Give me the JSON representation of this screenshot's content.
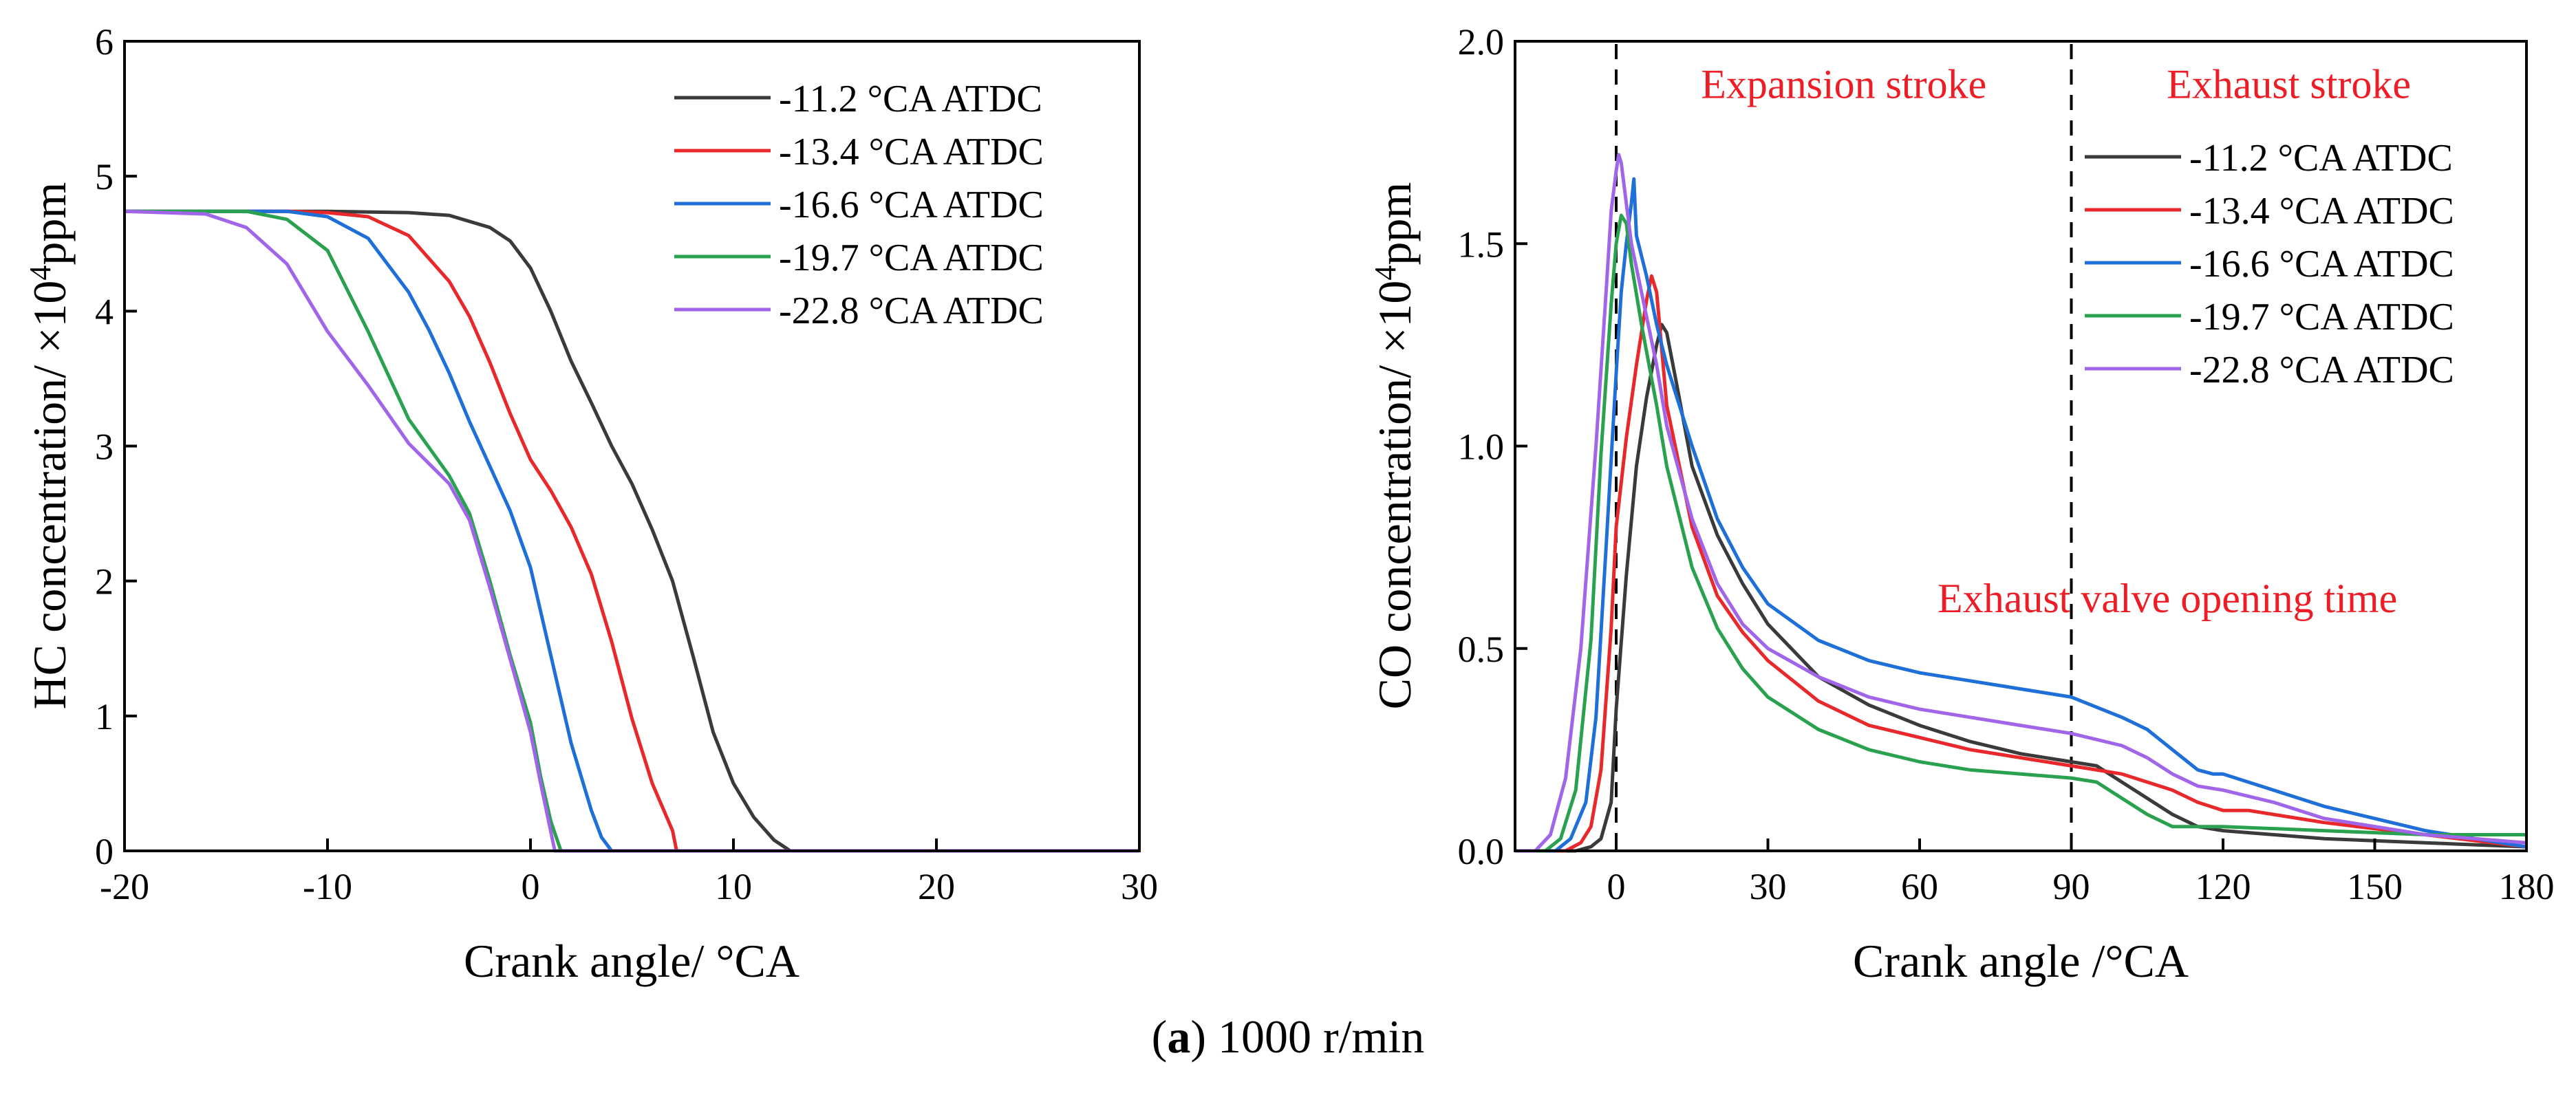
{
  "caption": {
    "bold": "a",
    "open": "(",
    "close": ")",
    "rest": " 1000 r/min"
  },
  "colors": {
    "-11.2": "#3a3a3a",
    "-13.4": "#e8282b",
    "-16.6": "#1f6fd8",
    "-19.7": "#2aa14f",
    "-22.8": "#a065e8",
    "annotation": "#ee1c24"
  },
  "chart_data": [
    {
      "type": "line",
      "id": "hc",
      "xlabel": "Crank angle/ °CA",
      "ylabel_prefix": "HC concentration/ ×10",
      "ylabel_sup": "4",
      "ylabel_suffix": "ppm",
      "xlim": [
        -20,
        30
      ],
      "ylim": [
        0,
        6
      ],
      "xticks": [
        -20,
        -10,
        0,
        10,
        20,
        30
      ],
      "yticks": [
        0,
        1,
        2,
        3,
        4,
        5,
        6
      ],
      "legend_position": "top-right",
      "series": [
        {
          "key": "-11.2",
          "name": "-11.2 °CA ATDC",
          "x": [
            -20,
            -10,
            -6,
            -4,
            -2,
            -1,
            0,
            1,
            2,
            3,
            4,
            5,
            6,
            7,
            8,
            9,
            10,
            11,
            12,
            12.8,
            13,
            30
          ],
          "y": [
            4.74,
            4.74,
            4.73,
            4.71,
            4.62,
            4.52,
            4.32,
            4.0,
            3.63,
            3.32,
            3.0,
            2.72,
            2.38,
            2.0,
            1.45,
            0.88,
            0.5,
            0.25,
            0.08,
            0.0,
            0.0,
            0.0
          ]
        },
        {
          "key": "-13.4",
          "name": "-13.4 °CA ATDC",
          "x": [
            -20,
            -12,
            -10,
            -8,
            -6,
            -4,
            -3,
            -2,
            -1,
            0,
            1,
            2,
            3,
            4,
            5,
            6,
            7,
            7.2,
            30
          ],
          "y": [
            4.74,
            4.74,
            4.73,
            4.7,
            4.56,
            4.22,
            3.96,
            3.62,
            3.24,
            2.9,
            2.67,
            2.4,
            2.05,
            1.55,
            0.98,
            0.5,
            0.15,
            0.0,
            0.0
          ]
        },
        {
          "key": "-16.6",
          "name": "-16.6 °CA ATDC",
          "x": [
            -20,
            -12,
            -10,
            -8,
            -6,
            -5,
            -4,
            -3,
            -2,
            -1,
            0,
            1,
            2,
            3,
            3.5,
            4,
            30
          ],
          "y": [
            4.74,
            4.74,
            4.7,
            4.54,
            4.14,
            3.86,
            3.54,
            3.18,
            2.85,
            2.52,
            2.1,
            1.45,
            0.8,
            0.3,
            0.1,
            0.0,
            0.0
          ]
        },
        {
          "key": "-19.7",
          "name": "-19.7 °CA ATDC",
          "x": [
            -20,
            -14,
            -12,
            -10,
            -8,
            -6,
            -4,
            -3,
            -2,
            -1,
            0,
            0.5,
            1,
            1.5,
            30
          ],
          "y": [
            4.74,
            4.74,
            4.68,
            4.45,
            3.85,
            3.2,
            2.78,
            2.5,
            2.0,
            1.45,
            0.95,
            0.55,
            0.22,
            0.0,
            0.0
          ]
        },
        {
          "key": "-22.8",
          "name": "-22.8 °CA ATDC",
          "x": [
            -20,
            -16,
            -14,
            -12,
            -10,
            -8,
            -6,
            -4,
            -3,
            -2,
            -1,
            0,
            0.5,
            1.2,
            30
          ],
          "y": [
            4.74,
            4.72,
            4.62,
            4.35,
            3.85,
            3.45,
            3.02,
            2.72,
            2.45,
            1.95,
            1.42,
            0.88,
            0.5,
            0.0,
            0.0
          ]
        }
      ]
    },
    {
      "type": "line",
      "id": "co",
      "xlabel": "Crank angle /°CA",
      "ylabel_prefix": "CO concentration/ ×10",
      "ylabel_sup": "4",
      "ylabel_suffix": "ppm",
      "xlim": [
        -20,
        180
      ],
      "ylim": [
        0,
        2.0
      ],
      "xticks": [
        0,
        30,
        60,
        90,
        120,
        150,
        180
      ],
      "yticks": [
        0.0,
        0.5,
        1.0,
        1.5,
        2.0
      ],
      "legend_position": "top-right",
      "vlines": [
        0,
        90
      ],
      "annotations": [
        {
          "text": "Expansion stroke",
          "x": 45,
          "y": 1.86
        },
        {
          "text": "Exhaust stroke",
          "x": 133,
          "y": 1.86
        },
        {
          "text": "Exhaust valve opening time",
          "x": 109,
          "y": 0.59
        }
      ],
      "series": [
        {
          "key": "-11.2",
          "name": "-11.2 °CA ATDC",
          "x": [
            -20,
            -8,
            -5,
            -3,
            -1,
            0,
            2,
            4,
            6,
            8,
            9,
            10,
            12,
            15,
            20,
            25,
            30,
            40,
            50,
            60,
            70,
            80,
            90,
            95,
            100,
            105,
            110,
            115,
            120,
            140,
            160,
            180
          ],
          "y": [
            0.0,
            0.0,
            0.01,
            0.03,
            0.12,
            0.35,
            0.68,
            0.95,
            1.12,
            1.25,
            1.3,
            1.28,
            1.15,
            0.95,
            0.78,
            0.66,
            0.56,
            0.43,
            0.36,
            0.31,
            0.27,
            0.24,
            0.22,
            0.21,
            0.17,
            0.13,
            0.09,
            0.06,
            0.05,
            0.03,
            0.02,
            0.01
          ]
        },
        {
          "key": "-13.4",
          "name": "-13.4 °CA ATDC",
          "x": [
            -20,
            -10,
            -7,
            -5,
            -3,
            -1,
            0,
            2,
            4,
            6,
            7,
            8,
            10,
            15,
            20,
            25,
            30,
            40,
            50,
            60,
            70,
            80,
            90,
            100,
            110,
            115,
            120,
            125,
            140,
            160,
            180
          ],
          "y": [
            0.0,
            0.0,
            0.02,
            0.06,
            0.2,
            0.55,
            0.8,
            1.02,
            1.2,
            1.36,
            1.42,
            1.38,
            1.1,
            0.8,
            0.63,
            0.54,
            0.47,
            0.37,
            0.31,
            0.28,
            0.25,
            0.23,
            0.21,
            0.19,
            0.15,
            0.12,
            0.1,
            0.1,
            0.07,
            0.04,
            0.01
          ]
        },
        {
          "key": "-16.6",
          "name": "-16.6 °CA ATDC",
          "x": [
            -20,
            -12,
            -9,
            -6,
            -4,
            -2,
            0,
            1,
            2,
            3,
            3.5,
            4,
            6,
            8,
            10,
            15,
            20,
            25,
            30,
            40,
            50,
            60,
            70,
            80,
            90,
            100,
            105,
            110,
            115,
            118,
            120,
            125,
            130,
            140,
            160,
            180
          ],
          "y": [
            0.0,
            0.0,
            0.03,
            0.12,
            0.33,
            0.75,
            1.18,
            1.38,
            1.5,
            1.6,
            1.66,
            1.52,
            1.42,
            1.3,
            1.2,
            1.0,
            0.82,
            0.7,
            0.61,
            0.52,
            0.47,
            0.44,
            0.42,
            0.4,
            0.38,
            0.33,
            0.3,
            0.25,
            0.2,
            0.19,
            0.19,
            0.17,
            0.15,
            0.11,
            0.05,
            0.01
          ]
        },
        {
          "key": "-19.7",
          "name": "-19.7 °CA ATDC",
          "x": [
            -20,
            -14,
            -11,
            -8,
            -5,
            -3,
            -1,
            0,
            1,
            2,
            3,
            5,
            8,
            10,
            15,
            20,
            25,
            30,
            40,
            50,
            60,
            70,
            80,
            90,
            95,
            100,
            105,
            110,
            115,
            120,
            140,
            160,
            180
          ],
          "y": [
            0.0,
            0.0,
            0.03,
            0.15,
            0.52,
            0.98,
            1.35,
            1.5,
            1.57,
            1.55,
            1.45,
            1.3,
            1.1,
            0.95,
            0.7,
            0.55,
            0.45,
            0.38,
            0.3,
            0.25,
            0.22,
            0.2,
            0.19,
            0.18,
            0.17,
            0.13,
            0.09,
            0.06,
            0.06,
            0.06,
            0.05,
            0.04,
            0.04
          ]
        },
        {
          "key": "-22.8",
          "name": "-22.8 °CA ATDC",
          "x": [
            -20,
            -16,
            -13,
            -10,
            -7,
            -4,
            -2,
            -1,
            0,
            0.5,
            1,
            2,
            3,
            5,
            8,
            10,
            15,
            20,
            25,
            30,
            40,
            50,
            60,
            70,
            80,
            90,
            100,
            105,
            110,
            115,
            120,
            130,
            140,
            160,
            180
          ],
          "y": [
            0.0,
            0.0,
            0.04,
            0.18,
            0.5,
            1.0,
            1.38,
            1.58,
            1.68,
            1.72,
            1.7,
            1.6,
            1.5,
            1.38,
            1.2,
            1.05,
            0.82,
            0.66,
            0.56,
            0.5,
            0.43,
            0.38,
            0.35,
            0.33,
            0.31,
            0.29,
            0.26,
            0.23,
            0.19,
            0.16,
            0.15,
            0.12,
            0.08,
            0.04,
            0.02
          ]
        }
      ]
    }
  ]
}
